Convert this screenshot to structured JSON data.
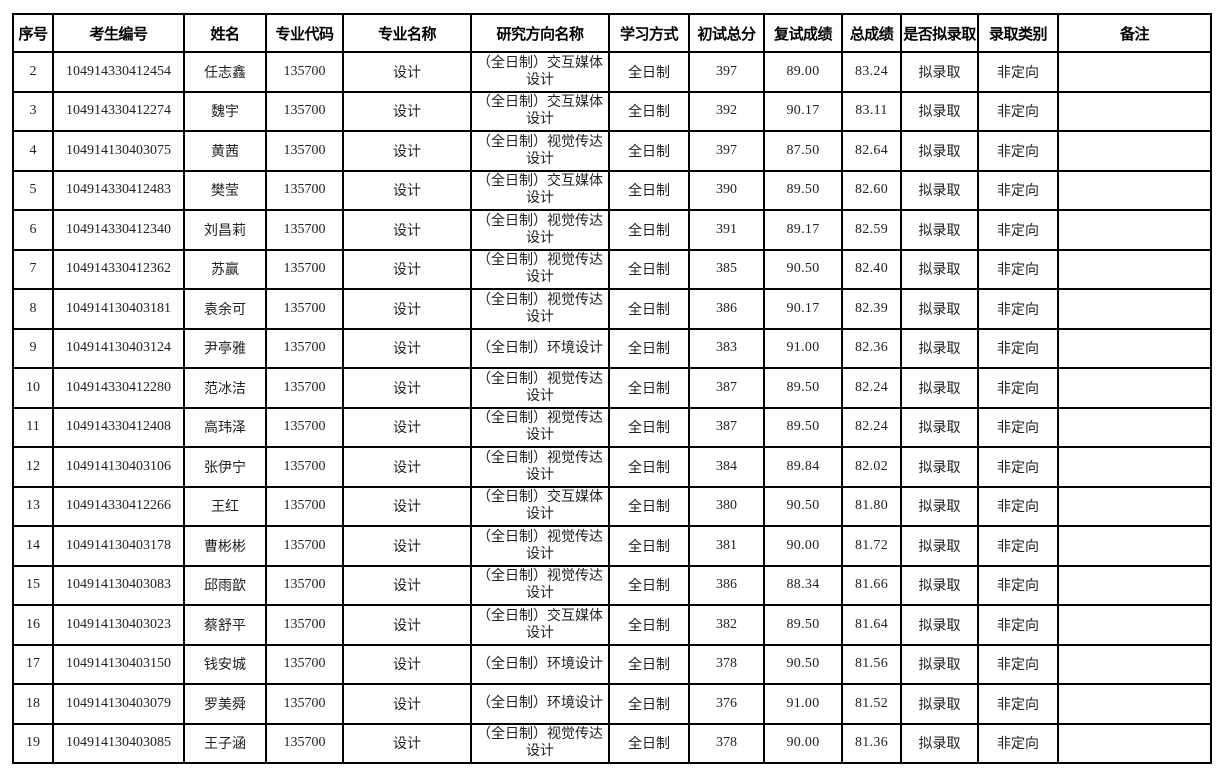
{
  "table": {
    "headers": [
      "序号",
      "考生编号",
      "姓名",
      "专业代码",
      "专业名称",
      "研究方向名称",
      "学习方式",
      "初试总分",
      "复试成绩",
      "总成绩",
      "是否拟录取",
      "录取类别",
      "备注"
    ],
    "rows": [
      [
        "2",
        "104914330412454",
        "任志鑫",
        "135700",
        "设计",
        "（全日制）交互媒体设计",
        "全日制",
        "397",
        "89.00",
        "83.24",
        "拟录取",
        "非定向",
        ""
      ],
      [
        "3",
        "104914330412274",
        "魏宇",
        "135700",
        "设计",
        "（全日制）交互媒体设计",
        "全日制",
        "392",
        "90.17",
        "83.11",
        "拟录取",
        "非定向",
        ""
      ],
      [
        "4",
        "104914130403075",
        "黄茜",
        "135700",
        "设计",
        "（全日制）视觉传达设计",
        "全日制",
        "397",
        "87.50",
        "82.64",
        "拟录取",
        "非定向",
        ""
      ],
      [
        "5",
        "104914330412483",
        "樊莹",
        "135700",
        "设计",
        "（全日制）交互媒体设计",
        "全日制",
        "390",
        "89.50",
        "82.60",
        "拟录取",
        "非定向",
        ""
      ],
      [
        "6",
        "104914330412340",
        "刘昌莉",
        "135700",
        "设计",
        "（全日制）视觉传达设计",
        "全日制",
        "391",
        "89.17",
        "82.59",
        "拟录取",
        "非定向",
        ""
      ],
      [
        "7",
        "104914330412362",
        "苏赢",
        "135700",
        "设计",
        "（全日制）视觉传达设计",
        "全日制",
        "385",
        "90.50",
        "82.40",
        "拟录取",
        "非定向",
        ""
      ],
      [
        "8",
        "104914130403181",
        "袁余可",
        "135700",
        "设计",
        "（全日制）视觉传达设计",
        "全日制",
        "386",
        "90.17",
        "82.39",
        "拟录取",
        "非定向",
        ""
      ],
      [
        "9",
        "104914130403124",
        "尹亭雅",
        "135700",
        "设计",
        "（全日制）环境设计",
        "全日制",
        "383",
        "91.00",
        "82.36",
        "拟录取",
        "非定向",
        ""
      ],
      [
        "10",
        "104914330412280",
        "范冰洁",
        "135700",
        "设计",
        "（全日制）视觉传达设计",
        "全日制",
        "387",
        "89.50",
        "82.24",
        "拟录取",
        "非定向",
        ""
      ],
      [
        "11",
        "104914330412408",
        "高玮泽",
        "135700",
        "设计",
        "（全日制）视觉传达设计",
        "全日制",
        "387",
        "89.50",
        "82.24",
        "拟录取",
        "非定向",
        ""
      ],
      [
        "12",
        "104914130403106",
        "张伊宁",
        "135700",
        "设计",
        "（全日制）视觉传达设计",
        "全日制",
        "384",
        "89.84",
        "82.02",
        "拟录取",
        "非定向",
        ""
      ],
      [
        "13",
        "104914330412266",
        "王红",
        "135700",
        "设计",
        "（全日制）交互媒体设计",
        "全日制",
        "380",
        "90.50",
        "81.80",
        "拟录取",
        "非定向",
        ""
      ],
      [
        "14",
        "104914130403178",
        "曹彬彬",
        "135700",
        "设计",
        "（全日制）视觉传达设计",
        "全日制",
        "381",
        "90.00",
        "81.72",
        "拟录取",
        "非定向",
        ""
      ],
      [
        "15",
        "104914130403083",
        "邱雨歆",
        "135700",
        "设计",
        "（全日制）视觉传达设计",
        "全日制",
        "386",
        "88.34",
        "81.66",
        "拟录取",
        "非定向",
        ""
      ],
      [
        "16",
        "104914130403023",
        "蔡舒平",
        "135700",
        "设计",
        "（全日制）交互媒体设计",
        "全日制",
        "382",
        "89.50",
        "81.64",
        "拟录取",
        "非定向",
        ""
      ],
      [
        "17",
        "104914130403150",
        "钱安城",
        "135700",
        "设计",
        "（全日制）环境设计",
        "全日制",
        "378",
        "90.50",
        "81.56",
        "拟录取",
        "非定向",
        ""
      ],
      [
        "18",
        "104914130403079",
        "罗美舜",
        "135700",
        "设计",
        "（全日制）环境设计",
        "全日制",
        "376",
        "91.00",
        "81.52",
        "拟录取",
        "非定向",
        ""
      ],
      [
        "19",
        "104914130403085",
        "王子涵",
        "135700",
        "设计",
        "（全日制）视觉传达设计",
        "全日制",
        "378",
        "90.00",
        "81.36",
        "拟录取",
        "非定向",
        ""
      ]
    ]
  }
}
